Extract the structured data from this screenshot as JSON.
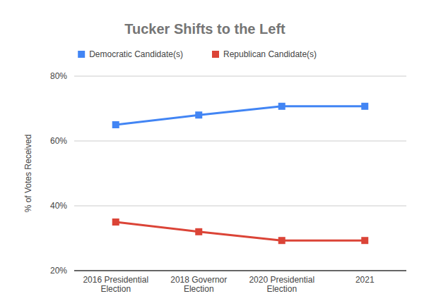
{
  "chart_data": {
    "type": "line",
    "title": "Tucker Shifts to the Left",
    "y_label": "% of Votes Received",
    "categories": [
      "2016 Presidential Election",
      "2018 Governor Election",
      "2020 Presidential Election",
      "2021"
    ],
    "series": [
      {
        "name": "Democratic Candidate(s)",
        "color": "#4285f4",
        "values": [
          65,
          68,
          70.7,
          70.7
        ]
      },
      {
        "name": "Republican Candidate(s)",
        "color": "#db4437",
        "values": [
          35,
          32,
          29.3,
          29.3
        ]
      }
    ],
    "ylim": [
      20,
      80
    ],
    "yticks": [
      {
        "value": 20,
        "label": "20%"
      },
      {
        "value": 40,
        "label": "40%"
      },
      {
        "value": 60,
        "label": "60%"
      },
      {
        "value": 80,
        "label": "80%"
      }
    ],
    "grid": true,
    "legend": "top",
    "marker": "square"
  }
}
